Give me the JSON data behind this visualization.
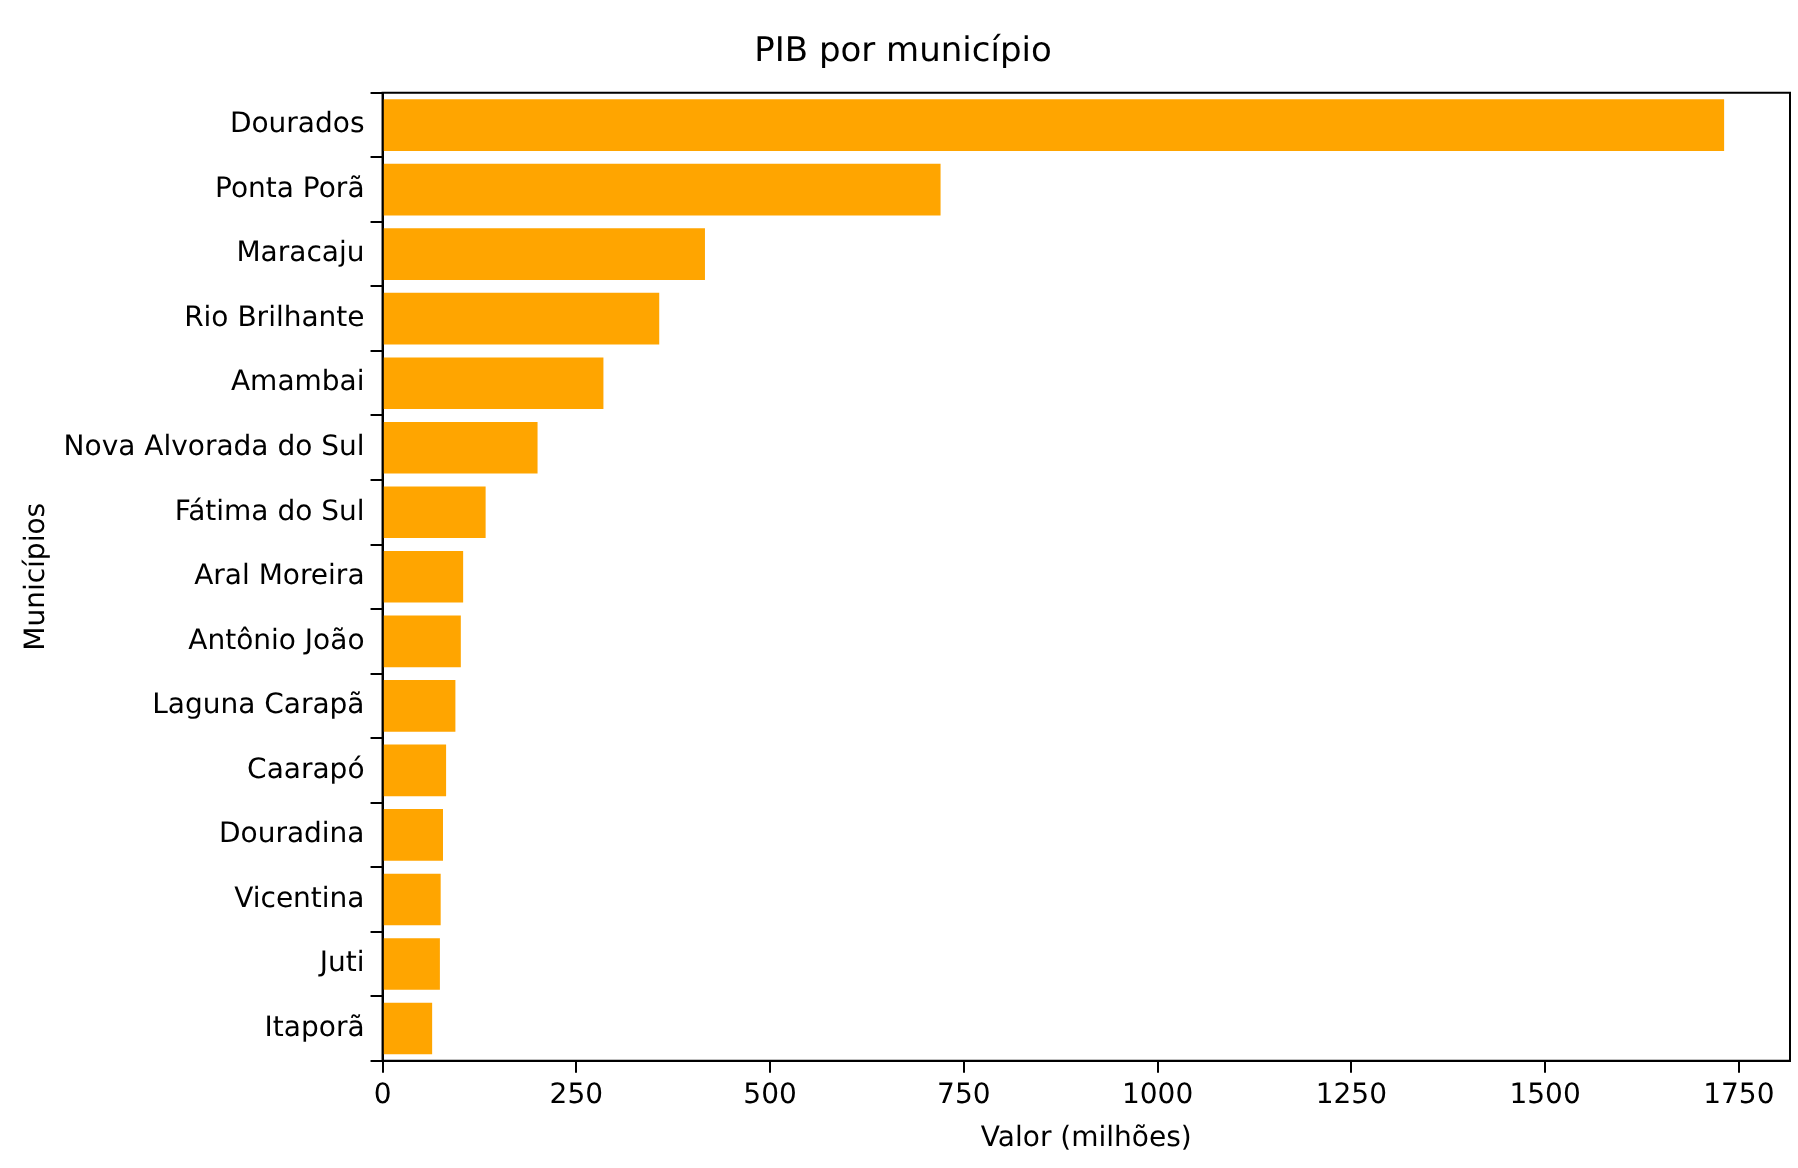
{
  "chart_data": {
    "type": "bar",
    "orientation": "horizontal",
    "title": "PIB por município",
    "xlabel": "Valor (milhões)",
    "ylabel": "Municípios",
    "categories": [
      "Dourados",
      "Ponta Porã",
      "Maracaju",
      "Rio Brilhante",
      "Amambai",
      "Nova Alvorada do Sul",
      "Fátima do Sul",
      "Aral Moreira",
      "Antônio João",
      "Laguna Carapã",
      "Caarapó",
      "Douradina",
      "Vicentina",
      "Juti",
      "Itaporã"
    ],
    "values": [
      1731,
      720,
      416,
      357,
      285,
      200,
      133,
      104,
      101,
      94,
      82,
      78,
      75,
      74,
      64
    ],
    "color": "#ffa500",
    "xlim": [
      0,
      1816
    ],
    "xticks": [
      0,
      250,
      500,
      750,
      1000,
      1250,
      1500,
      1750
    ],
    "grid": false,
    "legend": false
  }
}
